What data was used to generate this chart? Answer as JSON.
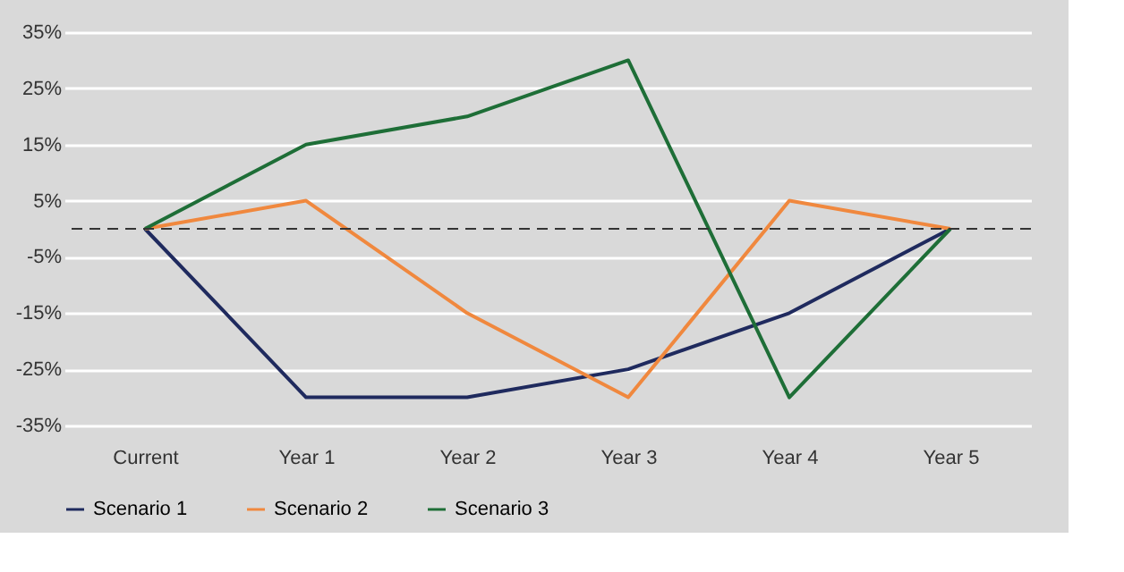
{
  "chart_data": {
    "type": "line",
    "categories": [
      "Current",
      "Year 1",
      "Year 2",
      "Year 3",
      "Year 4",
      "Year 5"
    ],
    "series": [
      {
        "name": "Scenario 1",
        "color": "#1f2a5e",
        "values": [
          0,
          -30,
          -30,
          -25,
          -15,
          0
        ]
      },
      {
        "name": "Scenario 2",
        "color": "#f0883e",
        "values": [
          0,
          5,
          -15,
          -30,
          5,
          0
        ]
      },
      {
        "name": "Scenario 3",
        "color": "#1e6e37",
        "values": [
          0,
          15,
          20,
          30,
          -30,
          0
        ]
      }
    ],
    "ylim": [
      -35,
      35
    ],
    "yticks": [
      {
        "value": -35,
        "label": "-35%"
      },
      {
        "value": -25,
        "label": "-25%"
      },
      {
        "value": -15,
        "label": "-15%"
      },
      {
        "value": -5,
        "label": "-5%"
      },
      {
        "value": 5,
        "label": "5%"
      },
      {
        "value": 15,
        "label": "15%"
      },
      {
        "value": 25,
        "label": "25%"
      },
      {
        "value": 35,
        "label": "35%"
      }
    ],
    "ref_lines": [
      {
        "axis": "y",
        "value": 0,
        "color": "#333333",
        "line_style": "dashed"
      }
    ],
    "grid": "y",
    "legend": "bottom",
    "marker": "none",
    "line_style": "solid"
  }
}
